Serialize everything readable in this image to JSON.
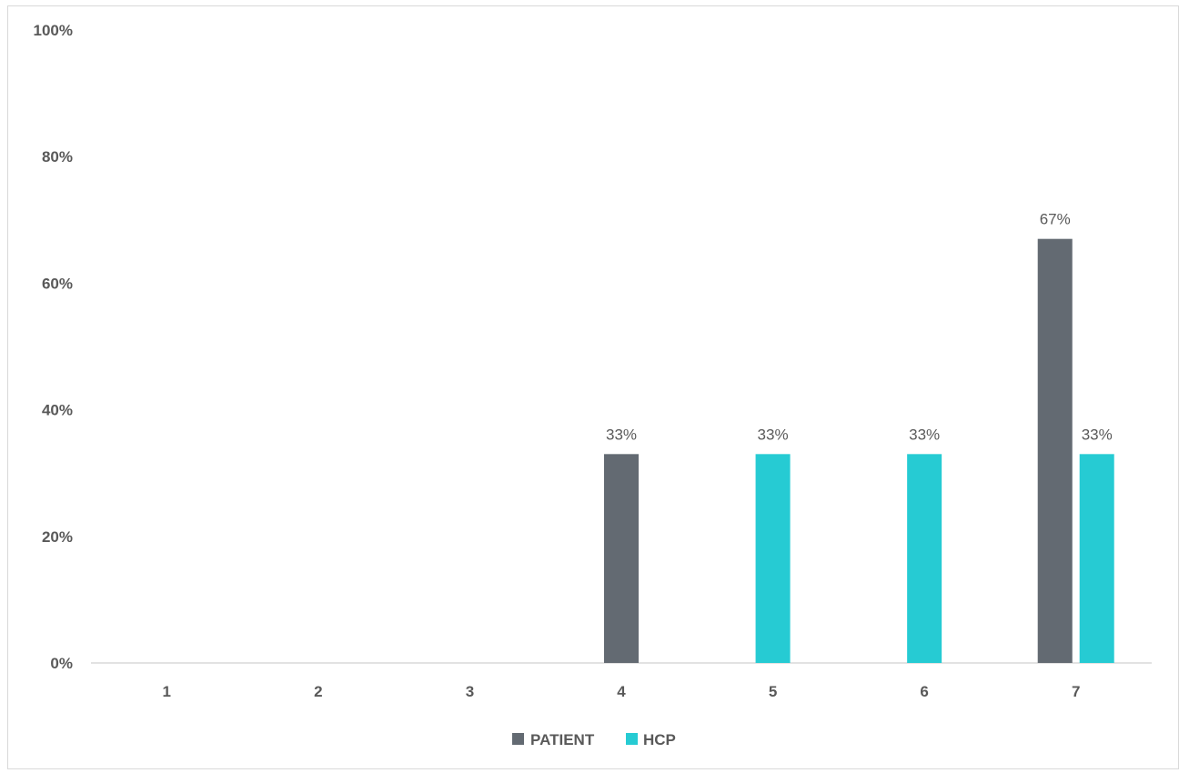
{
  "chart_data": {
    "type": "bar",
    "categories": [
      "1",
      "2",
      "3",
      "4",
      "5",
      "6",
      "7"
    ],
    "series": [
      {
        "name": "PATIENT",
        "color": "#636a72",
        "values": [
          0,
          0,
          0,
          0.33,
          0,
          0,
          0.67
        ],
        "labels": [
          "",
          "",
          "",
          "33%",
          "",
          "",
          "67%"
        ]
      },
      {
        "name": "HCP",
        "color": "#26cbd3",
        "values": [
          0,
          0,
          0,
          0,
          0.33,
          0.33,
          0.33
        ],
        "labels": [
          "",
          "",
          "",
          "",
          "33%",
          "33%",
          "33%"
        ]
      }
    ],
    "ylim": [
      0,
      1
    ],
    "yticks": [
      "0%",
      "20%",
      "40%",
      "60%",
      "80%",
      "100%"
    ],
    "ytick_values": [
      0,
      0.2,
      0.4,
      0.6,
      0.8,
      1.0
    ],
    "grid": false,
    "legend_position": "bottom-center",
    "title": "",
    "xlabel": "",
    "ylabel": ""
  }
}
